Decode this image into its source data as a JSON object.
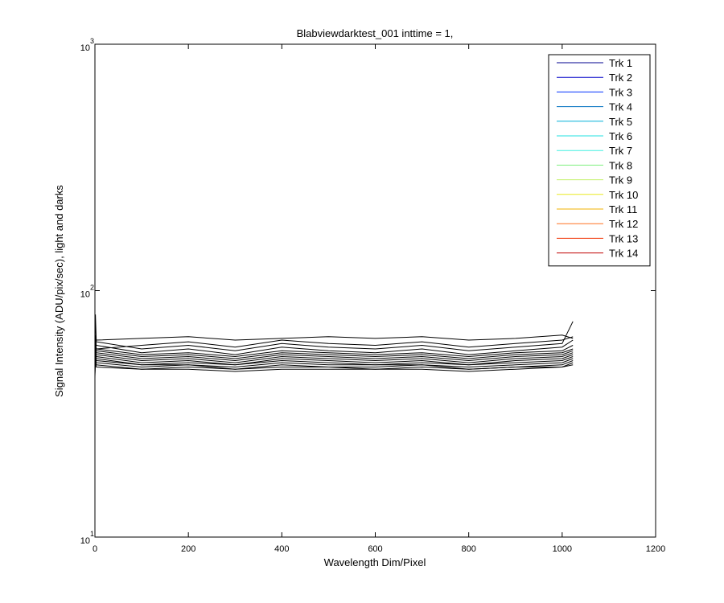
{
  "chart_data": {
    "type": "line",
    "title": "Blabviewdarktest_001 inttime = 1,",
    "x_label": "Wavelength Dim/Pixel",
    "y_label": "Signal Intensity (ADU/pix/sec), light and darks",
    "y_scale": "log",
    "xlim": [
      0,
      1200
    ],
    "xticks": [
      0,
      200,
      400,
      600,
      800,
      1000,
      1200
    ],
    "ylim": [
      10,
      1000
    ],
    "yticks": [
      {
        "value": 10,
        "label": "10",
        "exponent": "1"
      },
      {
        "value": 100,
        "label": "10",
        "exponent": "2"
      },
      {
        "value": 1000,
        "label": "10",
        "exponent": "3"
      }
    ],
    "grid": false,
    "legend_position": "upper-right",
    "line_color": "#000000",
    "x": [
      0,
      1,
      3,
      100,
      200,
      300,
      400,
      500,
      600,
      700,
      800,
      900,
      1000,
      1023
    ],
    "series": [
      {
        "name": "Trk 1",
        "color": "#00008f",
        "values": [
          55,
          80,
          62,
          58,
          60,
          57,
          61,
          59,
          58,
          60,
          57,
          59,
          61,
          75
        ]
      },
      {
        "name": "Trk 2",
        "color": "#0000c8",
        "values": [
          54,
          66,
          60,
          56,
          58,
          55,
          59,
          57,
          56,
          58,
          55,
          57,
          59,
          63
        ]
      },
      {
        "name": "Trk 3",
        "color": "#0030ff",
        "values": [
          53,
          64,
          58,
          55,
          56,
          54,
          57,
          56,
          55,
          56,
          54,
          56,
          57,
          60
        ]
      },
      {
        "name": "Trk 4",
        "color": "#0070c0",
        "values": [
          52,
          62,
          57,
          54,
          55,
          53,
          56,
          55,
          54,
          55,
          53,
          55,
          56,
          58
        ]
      },
      {
        "name": "Trk 5",
        "color": "#00b0d8",
        "values": [
          51,
          60,
          56,
          53,
          54,
          52,
          55,
          54,
          53,
          54,
          52,
          54,
          55,
          57
        ]
      },
      {
        "name": "Trk 6",
        "color": "#20e0e0",
        "values": [
          50,
          58,
          55,
          52,
          53,
          51,
          54,
          53,
          52,
          53,
          51,
          53,
          54,
          56
        ]
      },
      {
        "name": "Trk 7",
        "color": "#40f0e0",
        "values": [
          50,
          57,
          54,
          51,
          52,
          50,
          53,
          52,
          51,
          52,
          50,
          52,
          53,
          55
        ]
      },
      {
        "name": "Trk 8",
        "color": "#80f080",
        "values": [
          49,
          56,
          53,
          50,
          51,
          50,
          52,
          51,
          50,
          51,
          50,
          51,
          52,
          54
        ]
      },
      {
        "name": "Trk 9",
        "color": "#c0f060",
        "values": [
          48,
          55,
          52,
          50,
          50,
          49,
          51,
          50,
          50,
          50,
          49,
          50,
          51,
          53
        ]
      },
      {
        "name": "Trk 10",
        "color": "#e8e820",
        "values": [
          47,
          54,
          51,
          49,
          50,
          48,
          50,
          49,
          49,
          50,
          48,
          49,
          50,
          52
        ]
      },
      {
        "name": "Trk 11",
        "color": "#f0b000",
        "values": [
          46,
          53,
          50,
          48,
          49,
          48,
          49,
          49,
          48,
          49,
          48,
          49,
          49,
          51
        ]
      },
      {
        "name": "Trk 12",
        "color": "#ff7020",
        "values": [
          45,
          52,
          49,
          48,
          48,
          47,
          48,
          48,
          48,
          48,
          47,
          48,
          49,
          50
        ]
      },
      {
        "name": "Trk 13",
        "color": "#f03000",
        "values": [
          44,
          64,
          58,
          60,
          62,
          59,
          63,
          61,
          60,
          62,
          59,
          61,
          63,
          65
        ]
      },
      {
        "name": "Trk 14",
        "color": "#c00000",
        "values": [
          46,
          66,
          63,
          64,
          65,
          63,
          64,
          65,
          64,
          65,
          63,
          64,
          66,
          64
        ]
      }
    ]
  }
}
